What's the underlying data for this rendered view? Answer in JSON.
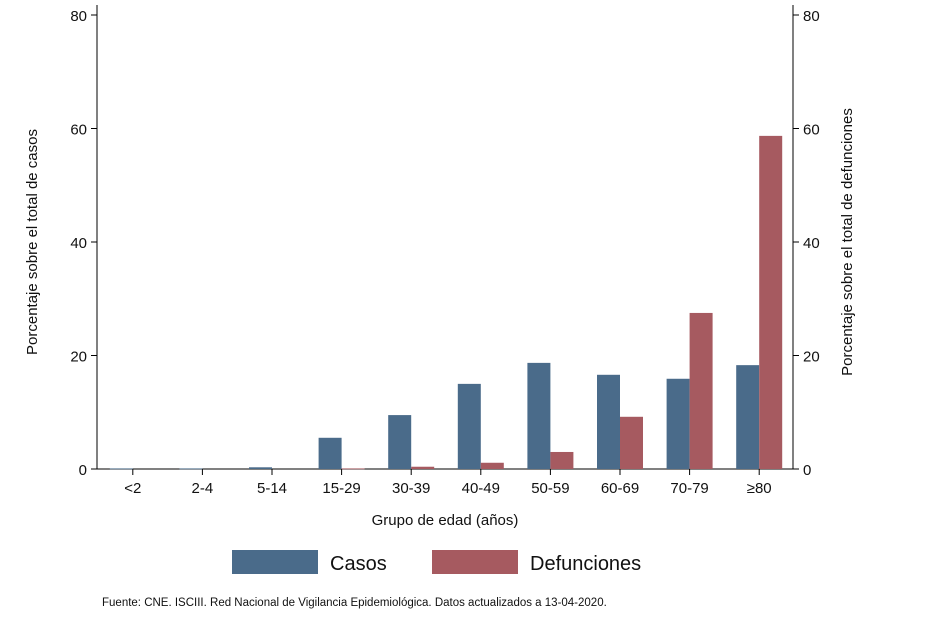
{
  "chart_data": {
    "type": "bar",
    "categories": [
      "<2",
      "2-4",
      "5-14",
      "15-29",
      "30-39",
      "40-49",
      "50-59",
      "60-69",
      "70-79",
      "≥80"
    ],
    "series": [
      {
        "name": "Casos",
        "color": "#4a6b8a",
        "axis": "left",
        "values": [
          0.1,
          0.1,
          0.3,
          5.5,
          9.5,
          15.0,
          18.7,
          16.6,
          15.9,
          18.3
        ]
      },
      {
        "name": "Defunciones",
        "color": "#a65a60",
        "axis": "right",
        "values": [
          0.0,
          0.0,
          0.0,
          0.1,
          0.4,
          1.1,
          3.0,
          9.2,
          27.5,
          58.7
        ]
      }
    ],
    "xlabel": "Grupo de edad (años)",
    "ylabel": "Porcentaje sobre el total de casos",
    "ylabel_right": "Porcentaje sobre el total de defunciones",
    "ylim": [
      0,
      80
    ],
    "yticks": [
      "0",
      "20",
      "40",
      "60",
      "80"
    ],
    "grid": false,
    "legend_position": "bottom"
  },
  "footer": {
    "source": "Fuente: CNE. ISCIII. Red Nacional de Vigilancia Epidemiológica. Datos actualizados a 13-04-2020."
  }
}
